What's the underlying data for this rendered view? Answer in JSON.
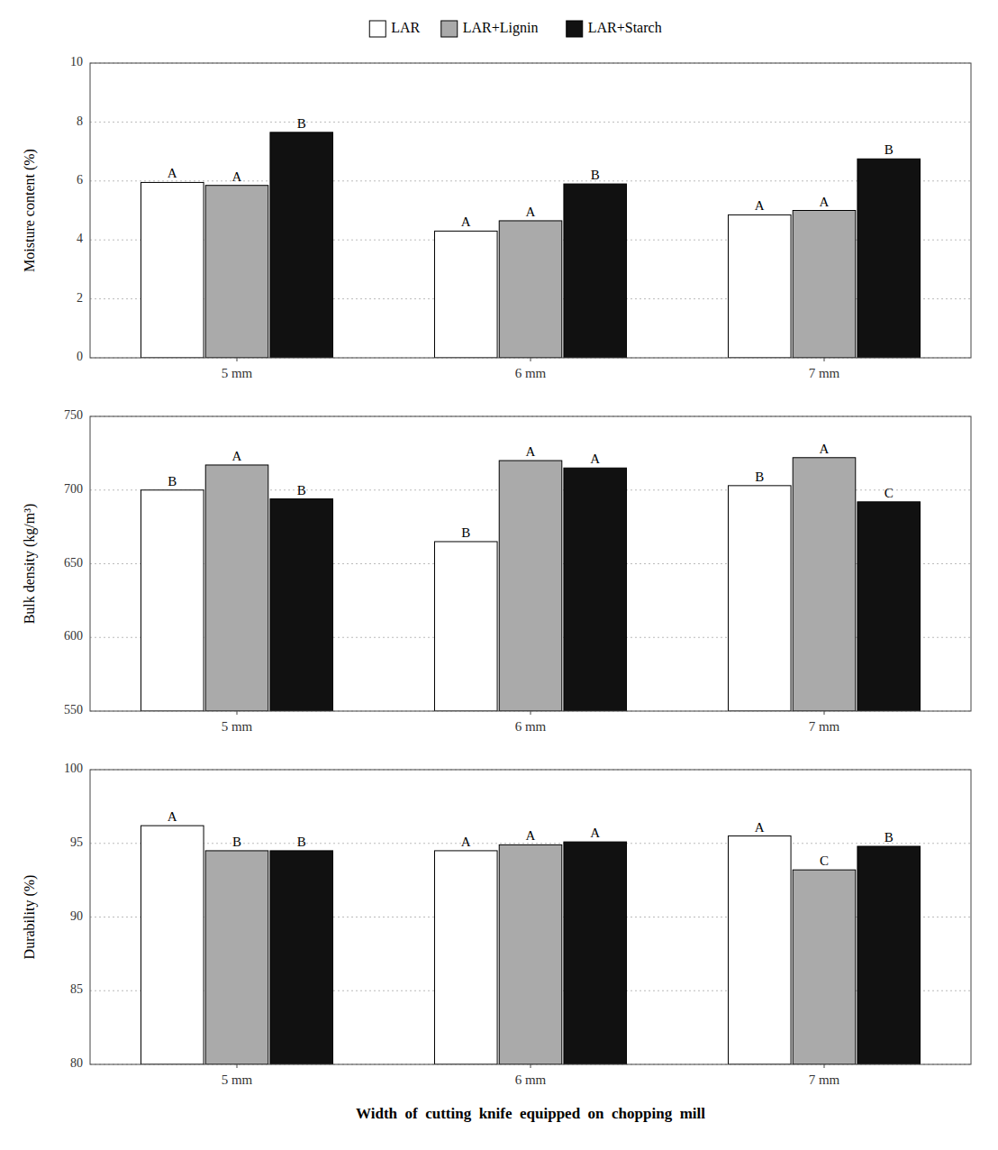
{
  "chart_data": [
    {
      "type": "bar",
      "categories": [
        "5 mm",
        "6 mm",
        "7 mm"
      ],
      "series": [
        {
          "name": "LAR",
          "color": "#ffffff",
          "values": [
            5.95,
            4.3,
            4.85
          ],
          "annotations": [
            "A",
            "A",
            "A"
          ]
        },
        {
          "name": "LAR+Lignin",
          "color": "#aaaaaa",
          "values": [
            5.85,
            4.65,
            5.0
          ],
          "annotations": [
            "A",
            "A",
            "A"
          ]
        },
        {
          "name": "LAR+Starch",
          "color": "#111111",
          "values": [
            7.65,
            5.9,
            6.75
          ],
          "annotations": [
            "B",
            "B",
            "B"
          ]
        }
      ],
      "ylabel": "Moisture content (%)",
      "ylim": [
        0,
        10
      ],
      "yticks": [
        0,
        2,
        4,
        6,
        8,
        10
      ],
      "grid": true,
      "legend": "top"
    },
    {
      "type": "bar",
      "categories": [
        "5 mm",
        "6 mm",
        "7 mm"
      ],
      "series": [
        {
          "color": "#ffffff",
          "values": [
            700,
            665,
            703
          ],
          "annotations": [
            "B",
            "B",
            "B"
          ]
        },
        {
          "color": "#aaaaaa",
          "values": [
            717,
            720,
            722
          ],
          "annotations": [
            "A",
            "A",
            "A"
          ]
        },
        {
          "color": "#111111",
          "values": [
            694,
            715,
            692
          ],
          "annotations": [
            "B",
            "A",
            "C"
          ]
        }
      ],
      "ylabel": "Bulk density (kg/m³)",
      "ylim": [
        550,
        750
      ],
      "yticks": [
        550,
        600,
        650,
        700,
        750
      ],
      "grid": true
    },
    {
      "type": "bar",
      "categories": [
        "5 mm",
        "6 mm",
        "7 mm"
      ],
      "series": [
        {
          "color": "#ffffff",
          "values": [
            96.2,
            94.5,
            95.5
          ],
          "annotations": [
            "A",
            "A",
            "A"
          ]
        },
        {
          "color": "#aaaaaa",
          "values": [
            94.5,
            94.9,
            93.2
          ],
          "annotations": [
            "B",
            "A",
            "C"
          ]
        },
        {
          "color": "#111111",
          "values": [
            94.5,
            95.1,
            94.8
          ],
          "annotations": [
            "B",
            "A",
            "B"
          ]
        }
      ],
      "ylabel": "Durability (%)",
      "xlabel": "Width  of  cutting  knife  equipped  on  chopping  mill",
      "ylim": [
        80,
        100
      ],
      "yticks": [
        80,
        85,
        90,
        95,
        100
      ],
      "grid": true
    }
  ]
}
